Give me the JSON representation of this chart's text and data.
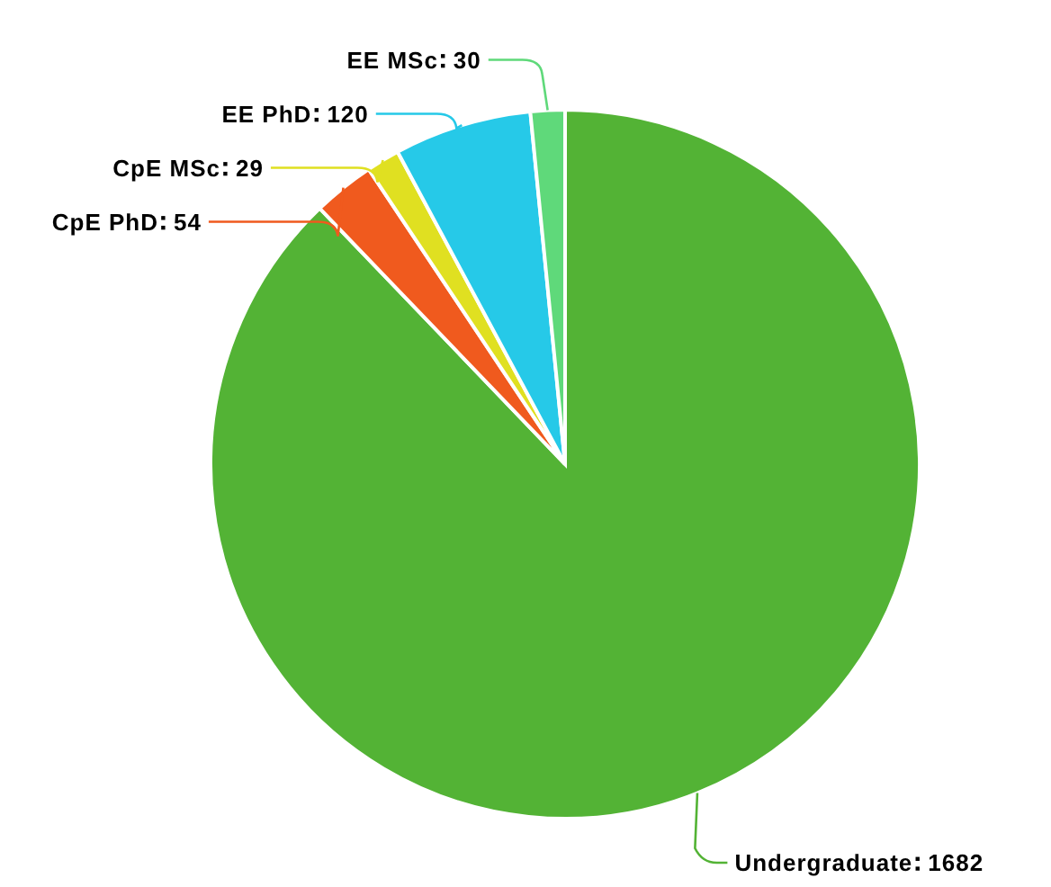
{
  "chart_data": {
    "type": "pie",
    "categories": [
      "Undergraduate",
      "CpE PhD",
      "CpE MSc",
      "EE PhD",
      "EE MSc"
    ],
    "values": [
      1682,
      54,
      29,
      120,
      30
    ],
    "colors": [
      "#53b335",
      "#f05a1e",
      "#e0e021",
      "#26c9e8",
      "#5fd97a"
    ],
    "data_labels": true
  }
}
